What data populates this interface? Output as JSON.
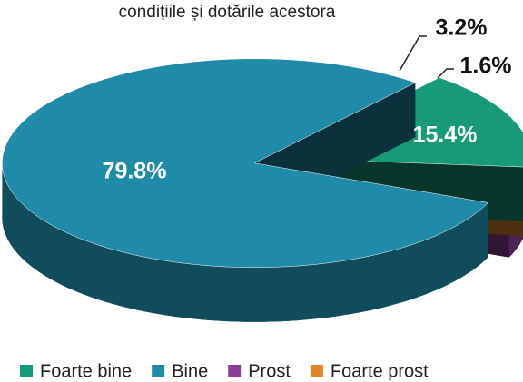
{
  "chart_data": {
    "type": "pie",
    "title": "condițiile și dotările acestora",
    "categories": [
      "Foarte bine",
      "Bine",
      "Prost",
      "Foarte prost"
    ],
    "values": [
      15.4,
      79.8,
      3.2,
      1.6
    ],
    "value_labels": [
      "15.4%",
      "79.8%",
      "3.2%",
      "1.6%"
    ],
    "colors": [
      "#169a78",
      "#1f8ba8",
      "#8c3f98",
      "#e0862a"
    ],
    "legend": "bottom"
  }
}
